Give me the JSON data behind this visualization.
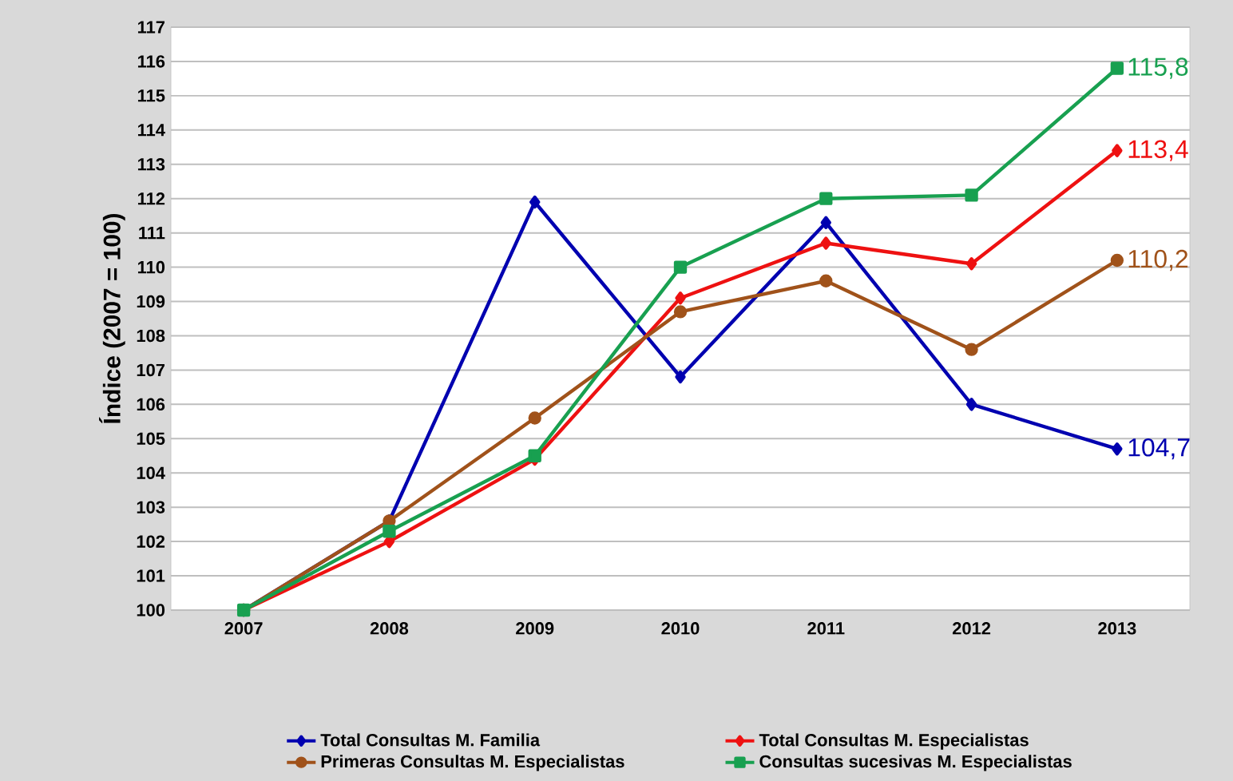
{
  "chart_data": {
    "type": "line",
    "ylabel": "Índice (2007 = 100)",
    "categories": [
      "2007",
      "2008",
      "2009",
      "2010",
      "2011",
      "2012",
      "2013"
    ],
    "series": [
      {
        "name": "Total Consultas M. Familia",
        "color": "#0000b0",
        "marker": "diamond",
        "values": [
          100,
          102.6,
          111.9,
          106.8,
          111.3,
          106.0,
          104.7
        ],
        "value_labels": [
          null,
          null,
          null,
          null,
          null,
          null,
          "104,7"
        ]
      },
      {
        "name": "Total Consultas M. Especialistas",
        "color": "#ee1111",
        "marker": "diamond",
        "values": [
          100,
          102.0,
          104.4,
          109.1,
          110.7,
          110.1,
          113.4
        ],
        "value_labels": [
          null,
          null,
          null,
          null,
          null,
          null,
          "113,4"
        ]
      },
      {
        "name": "Primeras Consultas M. Especialistas",
        "color": "#a0521a",
        "marker": "circle",
        "values": [
          100,
          102.6,
          105.6,
          108.7,
          109.6,
          107.6,
          110.2
        ],
        "value_labels": [
          null,
          null,
          null,
          null,
          null,
          null,
          "110,2"
        ]
      },
      {
        "name": "Consultas sucesivas M. Especialistas",
        "color": "#18a050",
        "marker": "square",
        "values": [
          100,
          102.3,
          104.5,
          110.0,
          112.0,
          112.1,
          115.8
        ],
        "value_labels": [
          null,
          null,
          null,
          null,
          null,
          null,
          "115,8"
        ]
      }
    ],
    "ylim": [
      100,
      117
    ],
    "yticks": [
      100,
      101,
      102,
      103,
      104,
      105,
      106,
      107,
      108,
      109,
      110,
      111,
      112,
      113,
      114,
      115,
      116,
      117
    ],
    "grid": "y",
    "legend": "bottom",
    "line_style": "solid"
  }
}
